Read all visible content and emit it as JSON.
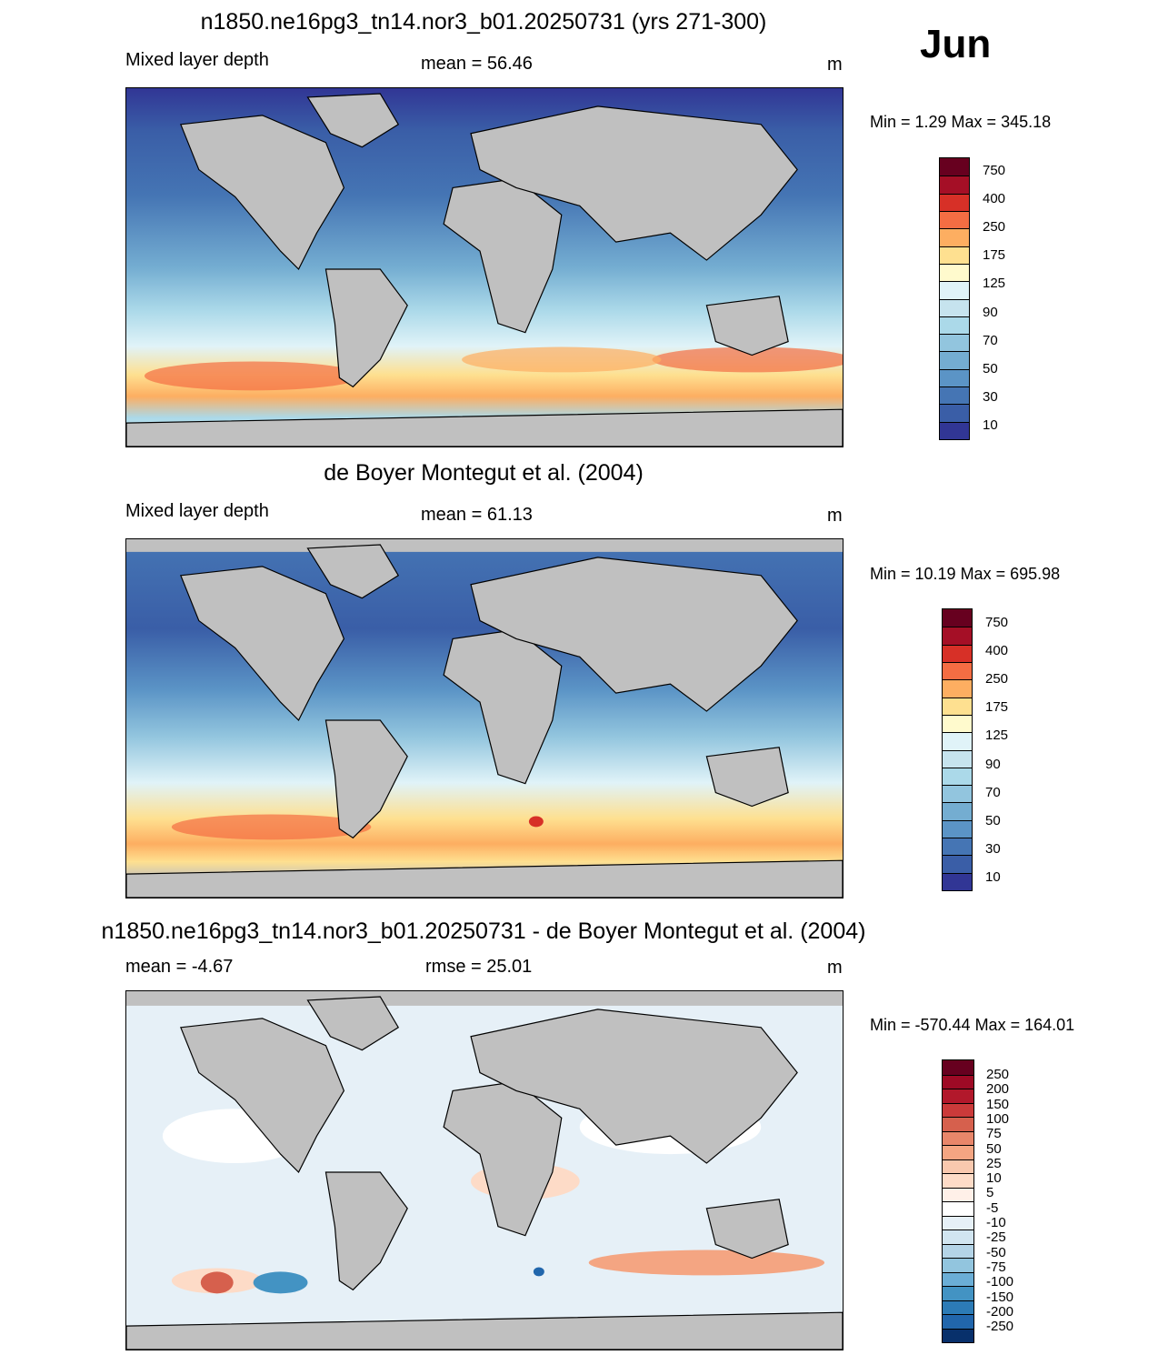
{
  "month": "Jun",
  "units": "m",
  "panels": [
    {
      "title": "n1850.ne16pg3_tn14.nor3_b01.20250731 (yrs 271-300)",
      "left_label": "Mixed layer depth",
      "stat_label": "mean =  56.46",
      "minmax": "Min =    1.29 Max = 345.18"
    },
    {
      "title": "de Boyer Montegut et al. (2004)",
      "left_label": "Mixed layer depth",
      "stat_label": "mean =  61.13",
      "minmax": "Min =  10.19 Max = 695.98"
    },
    {
      "title": "n1850.ne16pg3_tn14.nor3_b01.20250731 - de Boyer Montegut et al. (2004)",
      "left_label": "mean =  -4.67",
      "stat_label": "rmse =  25.01",
      "minmax": "Min = -570.44 Max = 164.01"
    }
  ],
  "colorbars": {
    "mld": {
      "labels": [
        "750",
        "400",
        "250",
        "175",
        "125",
        "90",
        "70",
        "50",
        "30",
        "10"
      ],
      "colors": [
        "#67001f",
        "#a50f26",
        "#d73027",
        "#f46d43",
        "#fdae61",
        "#fee090",
        "#fffacd",
        "#e0f3f8",
        "#c6e3ee",
        "#abd9e9",
        "#92c5de",
        "#74add1",
        "#5b94c6",
        "#4575b4",
        "#3a5ea7",
        "#313695"
      ]
    },
    "diff": {
      "labels": [
        "250",
        "200",
        "150",
        "100",
        "75",
        "50",
        "25",
        "10",
        "5",
        "-5",
        "-10",
        "-25",
        "-50",
        "-75",
        "-100",
        "-150",
        "-200",
        "-250"
      ],
      "colors": [
        "#67001f",
        "#9e0a25",
        "#b2182b",
        "#cb3a3a",
        "#d6604d",
        "#e8866a",
        "#f4a582",
        "#f9c8ae",
        "#fddbc7",
        "#fff0e8",
        "#ffffff",
        "#e6f0f7",
        "#d1e5f0",
        "#b4d4e7",
        "#92c5de",
        "#6baed6",
        "#4393c3",
        "#2c7bb6",
        "#2166ac",
        "#08306b"
      ]
    }
  }
}
